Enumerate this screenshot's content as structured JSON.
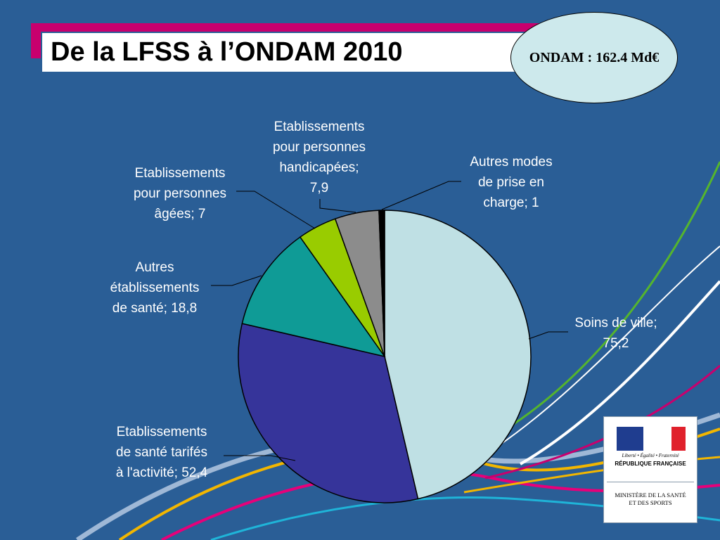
{
  "slide": {
    "title": "De la LFSS à l’ONDAM 2010",
    "ondam_total": "ONDAM : 162.4 Md€"
  },
  "chart_data": {
    "type": "pie",
    "title": "",
    "slices": [
      {
        "label": "Soins de ville",
        "value": 75.2,
        "color": "#bfe0e4",
        "label_lines": [
          "Soins de ville;",
          "75,2"
        ]
      },
      {
        "label": "Etablissements de santé tarifés à l'activité",
        "value": 52.4,
        "color": "#36349a",
        "label_lines": [
          "Etablissements",
          "de santé tarifés",
          "à l'activité; 52,4"
        ]
      },
      {
        "label": "Autres établissements de santé",
        "value": 18.8,
        "color": "#0f9b96",
        "label_lines": [
          "Autres",
          "établissements",
          "de santé; 18,8"
        ]
      },
      {
        "label": "Etablissements pour personnes âgées",
        "value": 7,
        "color": "#99cc00",
        "label_lines": [
          "Etablissements",
          "pour personnes",
          "âgées; 7"
        ]
      },
      {
        "label": "Etablissements pour personnes handicapées",
        "value": 7.9,
        "color": "#8c8c8c",
        "label_lines": [
          "Etablissements",
          "pour personnes",
          "handicapées;",
          "7,9"
        ]
      },
      {
        "label": "Autres modes de prise en charge",
        "value": 1,
        "color": "#000000",
        "label_lines": [
          "Autres modes",
          "de prise en",
          "charge; 1"
        ]
      }
    ]
  },
  "logo": {
    "motto": "Liberté • Égalité • Fraternité",
    "republic": "RÉPUBLIQUE FRANÇAISE",
    "ministry_line1": "MINISTÈRE DE LA SANTÉ",
    "ministry_line2": "ET DES SPORTS"
  }
}
